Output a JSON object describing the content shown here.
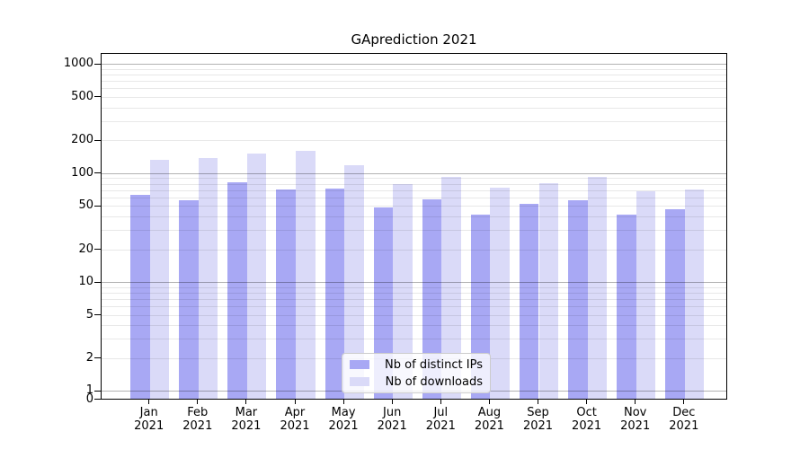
{
  "figure": {
    "title": "GAprediction 2021",
    "background_color": "#ffffff"
  },
  "chart_data": {
    "type": "bar",
    "title": "GAprediction 2021",
    "xlabel": "",
    "ylabel": "",
    "yscale": "symlog",
    "grid": "on",
    "legend_position": "inside lower-center",
    "categories": [
      "Jan",
      "Feb",
      "Mar",
      "Apr",
      "May",
      "Jun",
      "Jul",
      "Aug",
      "Sep",
      "Oct",
      "Nov",
      "Dec"
    ],
    "x_year_label": "2021",
    "y_ticks": [
      0,
      1,
      2,
      5,
      10,
      20,
      50,
      100,
      200,
      500,
      1000
    ],
    "ylim": [
      0,
      1265
    ],
    "series": [
      {
        "name": "Nb of distinct IPs",
        "color": "#a8a8f4",
        "values": [
          62,
          56,
          82,
          70,
          72,
          48,
          57,
          41,
          52,
          56,
          41,
          46
        ]
      },
      {
        "name": "Nb of downloads",
        "color": "#dadaf8",
        "values": [
          130,
          136,
          151,
          158,
          118,
          79,
          92,
          73,
          80,
          91,
          68,
          70
        ]
      }
    ],
    "colors": {
      "major_grid": "#b3b3b3",
      "minor_grid": "#e9e9e9",
      "axis": "#000000"
    }
  }
}
